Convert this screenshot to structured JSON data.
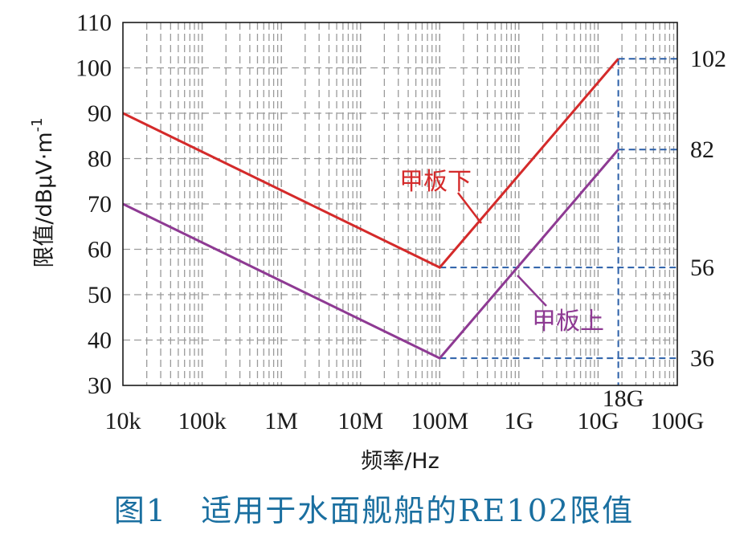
{
  "chart_data": {
    "type": "line",
    "xscale": "log",
    "xlim": [
      "10k",
      "100G"
    ],
    "ylim": [
      30,
      110
    ],
    "grid": true,
    "xlabel": "频率/Hz",
    "ylabel": "限值/dBμV·m",
    "ylabel_sup": "-1",
    "x_ticks": [
      "10k",
      "100k",
      "1M",
      "10M",
      "100M",
      "1G",
      "10G",
      "100G"
    ],
    "y_ticks": [
      30,
      40,
      50,
      60,
      70,
      80,
      90,
      100,
      110
    ],
    "series": [
      {
        "name": "甲板下",
        "color": "#d42a2a",
        "points": [
          {
            "x": "10k",
            "y": 90
          },
          {
            "x": "100M",
            "y": 56
          },
          {
            "x": "18G",
            "y": 102
          }
        ]
      },
      {
        "name": "甲板上",
        "color": "#8e3a93",
        "points": [
          {
            "x": "10k",
            "y": 70
          },
          {
            "x": "100M",
            "y": 36
          },
          {
            "x": "18G",
            "y": 82
          }
        ]
      }
    ],
    "reference_levels": [
      102,
      82,
      56,
      36
    ],
    "reference_frequency": "18G",
    "reference_color": "#2a5fa8"
  },
  "caption": {
    "figure": "图1",
    "text": "适用于水面舰船的RE102限值"
  }
}
